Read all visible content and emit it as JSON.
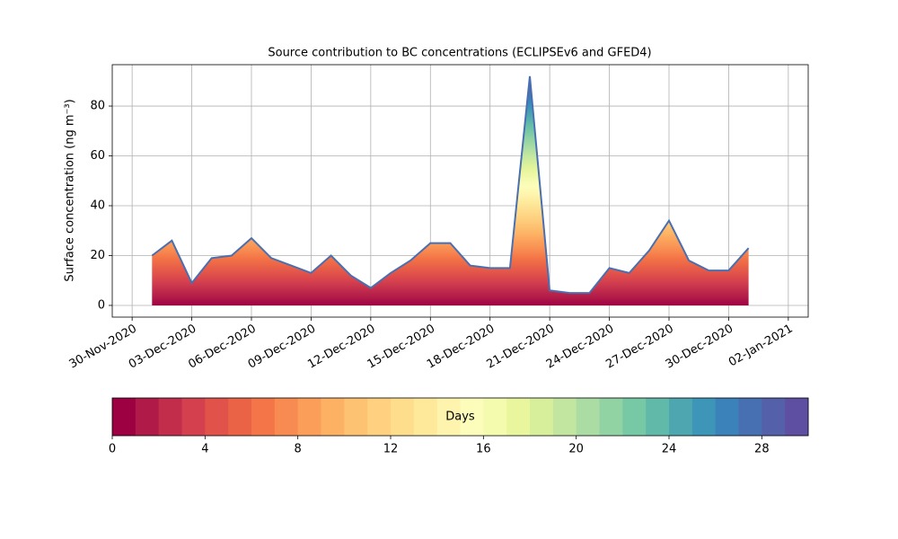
{
  "chart_data": {
    "type": "area",
    "title": "Source contribution to BC concentrations (ECLIPSEv6 and GFED4)",
    "y_label": "Surface concentration (ng m⁻³)",
    "x": [
      "2020-12-01",
      "2020-12-02",
      "2020-12-03",
      "2020-12-04",
      "2020-12-05",
      "2020-12-06",
      "2020-12-07",
      "2020-12-08",
      "2020-12-09",
      "2020-12-10",
      "2020-12-11",
      "2020-12-12",
      "2020-12-13",
      "2020-12-14",
      "2020-12-15",
      "2020-12-16",
      "2020-12-17",
      "2020-12-18",
      "2020-12-19",
      "2020-12-20",
      "2020-12-21",
      "2020-12-22",
      "2020-12-23",
      "2020-12-24",
      "2020-12-25",
      "2020-12-26",
      "2020-12-27",
      "2020-12-28",
      "2020-12-29",
      "2020-12-30",
      "2020-12-31"
    ],
    "values": [
      20,
      26,
      9,
      19,
      20,
      27,
      19,
      16,
      13,
      20,
      12,
      7,
      13,
      18,
      25,
      25,
      16,
      15,
      15,
      92,
      6,
      5,
      5,
      15,
      13,
      22,
      34,
      18,
      14,
      14,
      23
    ],
    "color": "#4a6fb0",
    "xlim": [
      "2020-11-29",
      "2021-01-03"
    ],
    "xticks": [
      {
        "value": "2020-11-30",
        "label": "30-Nov-2020"
      },
      {
        "value": "2020-12-03",
        "label": "03-Dec-2020"
      },
      {
        "value": "2020-12-06",
        "label": "06-Dec-2020"
      },
      {
        "value": "2020-12-09",
        "label": "09-Dec-2020"
      },
      {
        "value": "2020-12-12",
        "label": "12-Dec-2020"
      },
      {
        "value": "2020-12-15",
        "label": "15-Dec-2020"
      },
      {
        "value": "2020-12-18",
        "label": "18-Dec-2020"
      },
      {
        "value": "2020-12-21",
        "label": "21-Dec-2020"
      },
      {
        "value": "2020-12-24",
        "label": "24-Dec-2020"
      },
      {
        "value": "2020-12-27",
        "label": "27-Dec-2020"
      },
      {
        "value": "2020-12-30",
        "label": "30-Dec-2020"
      },
      {
        "value": "2021-01-02",
        "label": "02-Jan-2021"
      }
    ],
    "ylim": [
      -4.7,
      96.6
    ],
    "yticks": [
      0,
      20,
      40,
      60,
      80
    ],
    "grid": true,
    "colorbar": {
      "label": "Days",
      "lim": [
        0,
        30
      ],
      "ticks": [
        0,
        4,
        8,
        12,
        16,
        20,
        24,
        28
      ],
      "colors": [
        "#9e0142",
        "#b01a48",
        "#c22d4c",
        "#d4404e",
        "#e1524a",
        "#ea6347",
        "#f47547",
        "#f88b51",
        "#fb9e5a",
        "#fdb163",
        "#fdc272",
        "#fed07f",
        "#fedd8d",
        "#fee99b",
        "#fff4ad",
        "#fcfdba",
        "#f4faae",
        "#e9f69d",
        "#d7ef9b",
        "#c2e6a0",
        "#aadca4",
        "#92d3a4",
        "#77c8a5",
        "#61baa9",
        "#4ea7b0",
        "#3d95b8",
        "#3a82b9",
        "#4670b1",
        "#5460a9",
        "#5e4fa2"
      ]
    }
  }
}
